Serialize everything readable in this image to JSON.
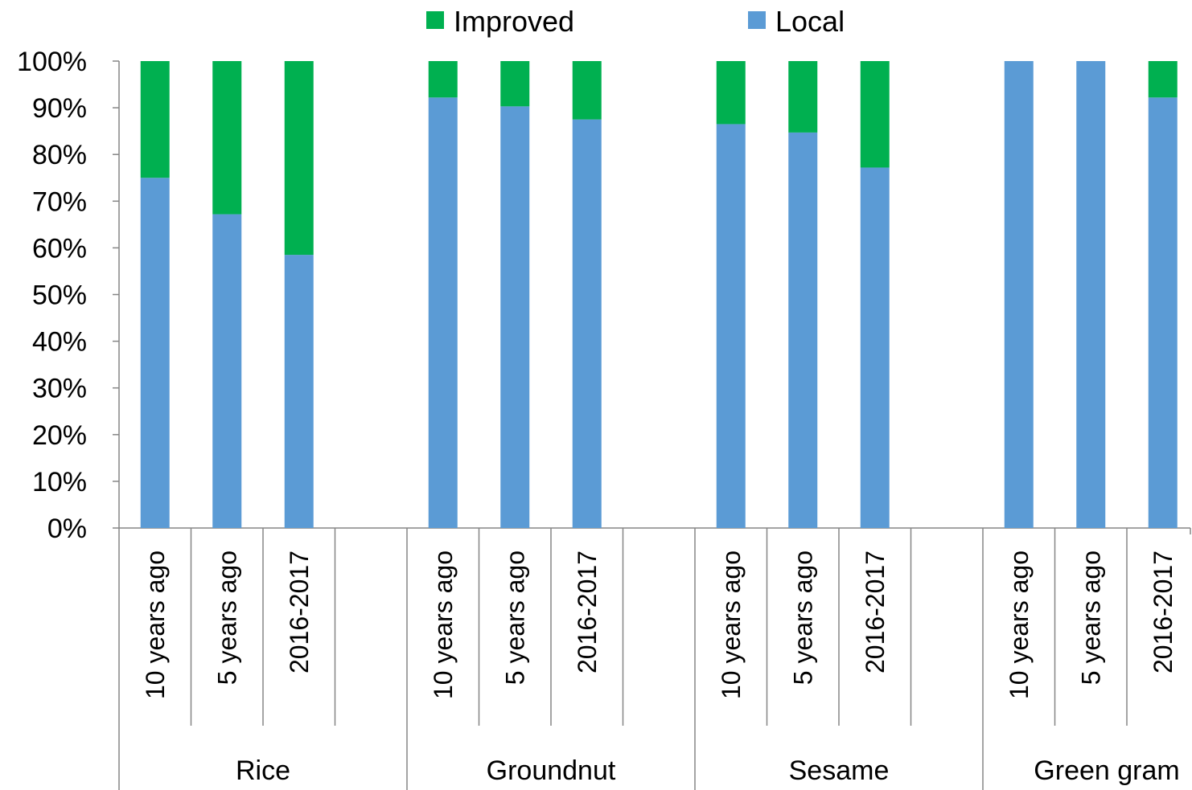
{
  "chart_data": {
    "type": "bar",
    "stacked": true,
    "title": "",
    "xlabel": "",
    "ylabel": "",
    "ylim": [
      0,
      100
    ],
    "y_ticks": [
      "0%",
      "10%",
      "20%",
      "30%",
      "40%",
      "50%",
      "60%",
      "70%",
      "80%",
      "90%",
      "100%"
    ],
    "grid": false,
    "legend_position": "top",
    "groups": [
      {
        "label": "Rice",
        "categories": [
          "10 years ago",
          "5 years ago",
          "2016-2017"
        ]
      },
      {
        "label": "Groundnut",
        "categories": [
          "10 years ago",
          "5 years ago",
          "2016-2017"
        ]
      },
      {
        "label": "Sesame",
        "categories": [
          "10 years ago",
          "5 years ago",
          "2016-2017"
        ]
      },
      {
        "label": "Green gram",
        "categories": [
          "10 years ago",
          "5 years ago",
          "2016-2017"
        ]
      }
    ],
    "series": [
      {
        "name": "Local",
        "color": "#5b9bd5",
        "values": [
          75,
          67.2,
          58.5,
          92.2,
          90.3,
          87.5,
          86.5,
          84.7,
          77.2,
          100,
          100,
          92.2
        ]
      },
      {
        "name": "Improved",
        "color": "#00b050",
        "values": [
          25,
          32.8,
          41.5,
          7.8,
          9.7,
          12.5,
          13.5,
          15.3,
          22.8,
          0,
          0,
          7.8
        ]
      }
    ],
    "legend_order": [
      "Improved",
      "Local"
    ]
  }
}
